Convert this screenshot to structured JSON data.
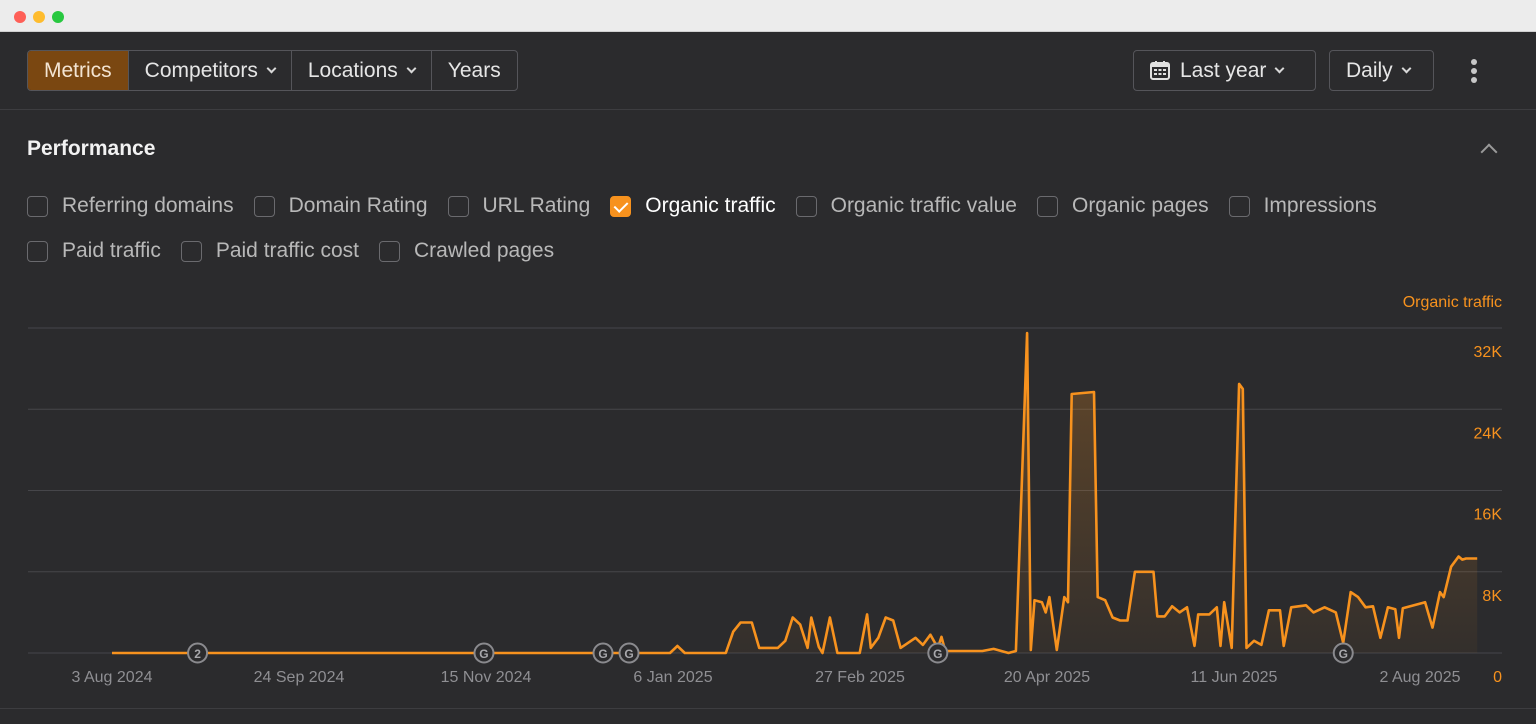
{
  "toolbar": {
    "tabs": [
      {
        "label": "Metrics",
        "active": true,
        "dropdown": false
      },
      {
        "label": "Competitors",
        "active": false,
        "dropdown": true
      },
      {
        "label": "Locations",
        "active": false,
        "dropdown": true
      },
      {
        "label": "Years",
        "active": false,
        "dropdown": false
      }
    ],
    "date_range": "Last year",
    "interval": "Daily",
    "more_icon": "kebab-menu-icon",
    "calendar_icon": "calendar-icon"
  },
  "section": {
    "title": "Performance",
    "collapse_icon": "chevron-up-icon"
  },
  "metrics": {
    "row1": [
      {
        "label": "Referring domains",
        "checked": false
      },
      {
        "label": "Domain Rating",
        "checked": false
      },
      {
        "label": "URL Rating",
        "checked": false
      },
      {
        "label": "Organic traffic",
        "checked": true
      },
      {
        "label": "Organic traffic value",
        "checked": false
      },
      {
        "label": "Organic pages",
        "checked": false
      },
      {
        "label": "Impressions",
        "checked": false
      }
    ],
    "row2": [
      {
        "label": "Paid traffic",
        "checked": false
      },
      {
        "label": "Paid traffic cost",
        "checked": false
      },
      {
        "label": "Crawled pages",
        "checked": false
      }
    ]
  },
  "colors": {
    "accent": "#f7921e",
    "active_tab": "#7a4711",
    "background": "#2b2b2d",
    "grid": "#46464a",
    "marker": "#8a8a8e"
  },
  "chart_data": {
    "type": "area",
    "series_label": "Organic traffic",
    "ylim": [
      0,
      32000
    ],
    "y_ticks": [
      "0",
      "8K",
      "16K",
      "24K",
      "32K"
    ],
    "x_ticks": [
      "3 Aug 2024",
      "24 Sep 2024",
      "15 Nov 2024",
      "6 Jan 2025",
      "27 Feb 2025",
      "20 Apr 2025",
      "11 Jun 2025",
      "2 Aug 2025"
    ],
    "x_range": [
      "2024-08-03",
      "2025-08-02"
    ],
    "grid": true,
    "annotations": [
      {
        "date": "2024-08-26",
        "label": "2"
      },
      {
        "date": "2024-11-11",
        "label": "G"
      },
      {
        "date": "2024-12-13",
        "label": "G"
      },
      {
        "date": "2024-12-20",
        "label": "G"
      },
      {
        "date": "2025-03-13",
        "label": "G"
      },
      {
        "date": "2025-06-30",
        "label": "G"
      }
    ],
    "points": [
      [
        "2024-08-03",
        0
      ],
      [
        "2024-12-31",
        0
      ],
      [
        "2025-01-02",
        700
      ],
      [
        "2025-01-04",
        0
      ],
      [
        "2025-01-15",
        0
      ],
      [
        "2025-01-17",
        2100
      ],
      [
        "2025-01-19",
        3000
      ],
      [
        "2025-01-22",
        3000
      ],
      [
        "2025-01-24",
        500
      ],
      [
        "2025-01-29",
        500
      ],
      [
        "2025-01-31",
        1200
      ],
      [
        "2025-02-02",
        3500
      ],
      [
        "2025-02-04",
        2800
      ],
      [
        "2025-02-06",
        500
      ],
      [
        "2025-02-07",
        3500
      ],
      [
        "2025-02-09",
        600
      ],
      [
        "2025-02-10",
        0
      ],
      [
        "2025-02-12",
        3500
      ],
      [
        "2025-02-14",
        0
      ],
      [
        "2025-02-20",
        0
      ],
      [
        "2025-02-22",
        3800
      ],
      [
        "2025-02-23",
        500
      ],
      [
        "2025-02-25",
        1500
      ],
      [
        "2025-02-27",
        3500
      ],
      [
        "2025-03-01",
        3200
      ],
      [
        "2025-03-03",
        500
      ],
      [
        "2025-03-07",
        1500
      ],
      [
        "2025-03-09",
        800
      ],
      [
        "2025-03-11",
        1800
      ],
      [
        "2025-03-13",
        500
      ],
      [
        "2025-03-14",
        1600
      ],
      [
        "2025-03-15",
        200
      ],
      [
        "2025-03-25",
        200
      ],
      [
        "2025-03-28",
        400
      ],
      [
        "2025-04-01",
        0
      ],
      [
        "2025-04-03",
        200
      ],
      [
        "2025-04-06",
        31500
      ],
      [
        "2025-04-07",
        300
      ],
      [
        "2025-04-08",
        5200
      ],
      [
        "2025-04-10",
        5000
      ],
      [
        "2025-04-11",
        4000
      ],
      [
        "2025-04-12",
        5500
      ],
      [
        "2025-04-14",
        300
      ],
      [
        "2025-04-16",
        5500
      ],
      [
        "2025-04-17",
        5000
      ],
      [
        "2025-04-18",
        25500
      ],
      [
        "2025-04-24",
        25700
      ],
      [
        "2025-04-25",
        5500
      ],
      [
        "2025-04-27",
        5200
      ],
      [
        "2025-04-29",
        3500
      ],
      [
        "2025-05-01",
        3200
      ],
      [
        "2025-05-03",
        3200
      ],
      [
        "2025-05-05",
        8000
      ],
      [
        "2025-05-10",
        8000
      ],
      [
        "2025-05-11",
        3600
      ],
      [
        "2025-05-13",
        3600
      ],
      [
        "2025-05-15",
        4600
      ],
      [
        "2025-05-17",
        4000
      ],
      [
        "2025-05-19",
        4500
      ],
      [
        "2025-05-21",
        700
      ],
      [
        "2025-05-22",
        3800
      ],
      [
        "2025-05-25",
        3800
      ],
      [
        "2025-05-27",
        4500
      ],
      [
        "2025-05-28",
        700
      ],
      [
        "2025-05-29",
        5000
      ],
      [
        "2025-05-31",
        500
      ],
      [
        "2025-06-02",
        26500
      ],
      [
        "2025-06-03",
        26000
      ],
      [
        "2025-06-04",
        500
      ],
      [
        "2025-06-06",
        1200
      ],
      [
        "2025-06-08",
        800
      ],
      [
        "2025-06-10",
        4200
      ],
      [
        "2025-06-13",
        4200
      ],
      [
        "2025-06-14",
        700
      ],
      [
        "2025-06-16",
        4500
      ],
      [
        "2025-06-20",
        4700
      ],
      [
        "2025-06-22",
        4000
      ],
      [
        "2025-06-25",
        4500
      ],
      [
        "2025-06-28",
        4000
      ],
      [
        "2025-06-30",
        1000
      ],
      [
        "2025-07-02",
        6000
      ],
      [
        "2025-07-04",
        5500
      ],
      [
        "2025-07-06",
        4500
      ],
      [
        "2025-07-08",
        4600
      ],
      [
        "2025-07-10",
        1500
      ],
      [
        "2025-07-12",
        4500
      ],
      [
        "2025-07-14",
        4300
      ],
      [
        "2025-07-15",
        1500
      ],
      [
        "2025-07-16",
        4400
      ],
      [
        "2025-07-22",
        5000
      ],
      [
        "2025-07-24",
        2500
      ],
      [
        "2025-07-26",
        6000
      ],
      [
        "2025-07-27",
        5500
      ],
      [
        "2025-07-29",
        8500
      ],
      [
        "2025-07-31",
        9500
      ],
      [
        "2025-08-01",
        9200
      ],
      [
        "2025-08-02",
        9300
      ],
      [
        "2025-08-05",
        9300
      ]
    ]
  }
}
